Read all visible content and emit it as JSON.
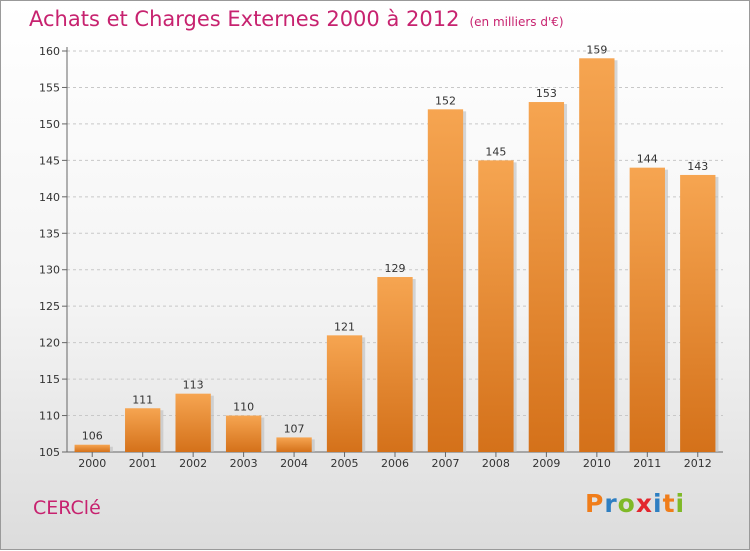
{
  "header": {
    "title": "Achats et Charges Externes 2000 à 2012",
    "subtitle": "(en milliers d'€)"
  },
  "footer": {
    "commune": "CERClé",
    "logo_letters": [
      "P",
      "r",
      "o",
      "x",
      "i",
      "t",
      "i"
    ],
    "logo_colors": [
      "#f07d1a",
      "#2e7fc2",
      "#7fb927",
      "#e3262e",
      "#2e7fc2",
      "#f07d1a",
      "#7fb927"
    ]
  },
  "colors": {
    "bar_top": "#f6a551",
    "bar_bottom": "#d4711a",
    "accent": "#c7226f"
  },
  "chart_data": {
    "type": "bar",
    "categories": [
      "2000",
      "2001",
      "2002",
      "2003",
      "2004",
      "2005",
      "2006",
      "2007",
      "2008",
      "2009",
      "2010",
      "2011",
      "2012"
    ],
    "values": [
      106,
      111,
      113,
      110,
      107,
      121,
      129,
      152,
      145,
      153,
      159,
      144,
      143
    ],
    "ylim": [
      105,
      160
    ],
    "yticks": [
      105,
      110,
      115,
      120,
      125,
      130,
      135,
      140,
      145,
      150,
      155,
      160
    ],
    "grid": true,
    "legend": "none"
  }
}
